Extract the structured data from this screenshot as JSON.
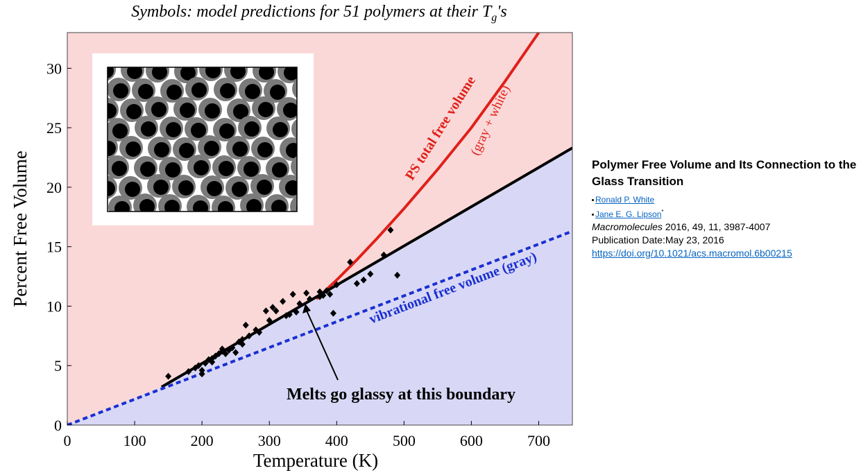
{
  "chart_data": {
    "type": "line",
    "title": [
      "Symbols: model predictions for 51 polymers at their T",
      "g",
      "'s"
    ],
    "xlabel": "Temperature  (K)",
    "ylabel": "Percent Free Volume",
    "xlim": [
      0,
      750
    ],
    "ylim": [
      0,
      33
    ],
    "xticks": [
      0,
      100,
      200,
      300,
      400,
      500,
      600,
      700
    ],
    "yticks": [
      0,
      5,
      10,
      15,
      20,
      25,
      30
    ],
    "fill_below": "#d8d8f6",
    "fill_above": "#fbd8d8",
    "series": [
      {
        "name": "PS total free volume",
        "subname": "(gray + white)",
        "color": "#e0201a",
        "style": "solid",
        "x": [
          370,
          400,
          430,
          460,
          500,
          550,
          600,
          650,
          700
        ],
        "values": [
          10.6,
          12.2,
          13.9,
          15.7,
          18.2,
          21.5,
          25.0,
          28.9,
          33.0
        ]
      },
      {
        "name": "boundary",
        "color": "#000000",
        "style": "solid",
        "x": [
          140,
          750
        ],
        "values": [
          3.2,
          23.3
        ]
      },
      {
        "name": "vibrational free volume (gray)",
        "color": "#1a2fd0",
        "style": "dashed",
        "x": [
          0,
          750
        ],
        "values": [
          0,
          16.3
        ]
      },
      {
        "name": "model predictions",
        "type": "scatter",
        "color": "#000000",
        "x": [
          150,
          180,
          190,
          195,
          200,
          205,
          210,
          215,
          220,
          225,
          230,
          235,
          240,
          245,
          250,
          255,
          260,
          265,
          270,
          285,
          295,
          305,
          310,
          320,
          330,
          335,
          340,
          345,
          355,
          375,
          380,
          385,
          395,
          400,
          420,
          430,
          440,
          450,
          470,
          480,
          490,
          375,
          325,
          200,
          215,
          230,
          260,
          280,
          300,
          360,
          390
        ],
        "values": [
          4.1,
          4.5,
          4.8,
          5.0,
          4.3,
          5.2,
          5.5,
          5.3,
          5.8,
          6.0,
          6.2,
          6.0,
          6.3,
          6.5,
          6.1,
          7.0,
          6.8,
          8.4,
          7.5,
          7.8,
          9.6,
          9.9,
          9.6,
          10.4,
          9.3,
          11.0,
          9.5,
          10.2,
          11.1,
          11.2,
          10.9,
          11.3,
          9.4,
          11.8,
          13.7,
          11.9,
          12.2,
          12.7,
          14.3,
          16.4,
          12.6,
          10.8,
          9.2,
          4.6,
          5.6,
          6.4,
          7.2,
          8.0,
          8.8,
          10.6,
          11.0
        ]
      }
    ],
    "annotation": "Melts go glassy at this boundary"
  },
  "citation": {
    "title": "Polymer Free Volume and Its Connection to the Glass Transition",
    "authors": [
      "Ronald P. White",
      "Jane E. G. Lipson"
    ],
    "corresponding_mark": "*",
    "journal": "Macromolecules",
    "details": " 2016, 49, 11, 3987-4007",
    "published": "Publication Date:May 23, 2016",
    "doi": "https://doi.org/10.1021/acs.macromol.6b00215"
  }
}
